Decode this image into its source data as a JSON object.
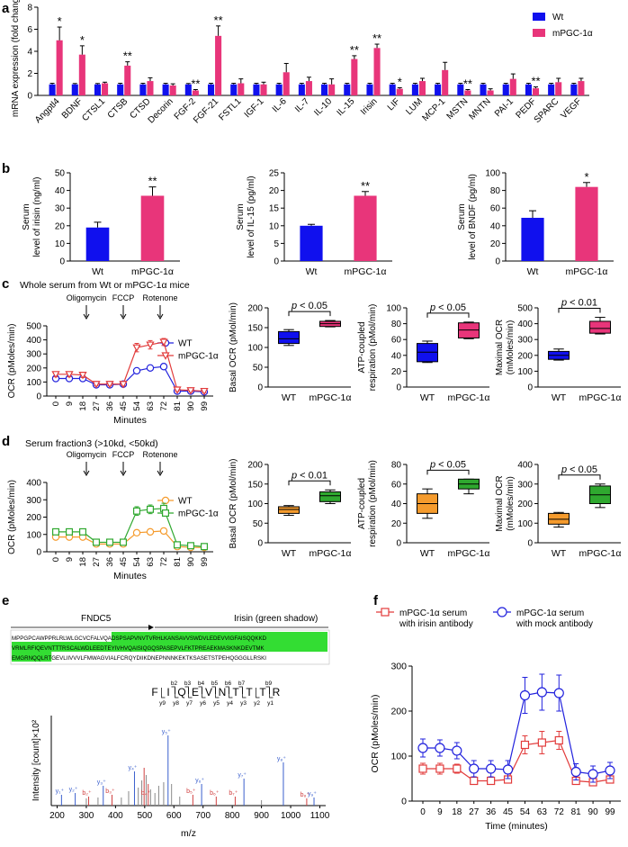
{
  "colors": {
    "wt": "#1010ee",
    "mpgc": "#e8357a",
    "orange": "#f59b2d",
    "green": "#2fa82f",
    "red": "#e23b3b",
    "blue": "#2222dd",
    "highlight": "#33dd33",
    "spec_blue": "#3a5fcd",
    "spec_red": "#d04040",
    "spec_gray": "#888888"
  },
  "panel_labels": {
    "a": "a",
    "b": "b",
    "c": "c",
    "d": "d",
    "e": "e",
    "f": "f"
  },
  "chart_data": [
    {
      "id": "a",
      "type": "bar",
      "ylabel": "mRNA expression (fold changes)",
      "ylim": [
        0,
        8
      ],
      "yticks": [
        0,
        2,
        4,
        6,
        8
      ],
      "legend": [
        "Wt",
        "mPGC-1α"
      ],
      "categories": [
        "Angptl4",
        "BDNF",
        "CTSL1",
        "CTSB",
        "CTSD",
        "Decorin",
        "FGF-2",
        "FGF-21",
        "FSTL1",
        "IGF-1",
        "IL-6",
        "IL-7",
        "IL-10",
        "IL-15",
        "Irisin",
        "LIF",
        "LUM",
        "MCP-1",
        "MSTN",
        "MNTN",
        "PAI-1",
        "PEDF",
        "SPARC",
        "VEGF"
      ],
      "series": [
        {
          "name": "Wt",
          "values": [
            1,
            1,
            1,
            1,
            1,
            1,
            1,
            1,
            1,
            1,
            1,
            1,
            1,
            1,
            1,
            1,
            1,
            1,
            1,
            1,
            1,
            1,
            1,
            1
          ],
          "errors": [
            0.1,
            0.08,
            0.08,
            0.1,
            0.1,
            0.1,
            0.08,
            0.1,
            0.1,
            0.1,
            0.1,
            0.1,
            0.1,
            0.1,
            0.1,
            0.1,
            0.1,
            0.1,
            0.1,
            0.1,
            0.1,
            0.1,
            0.1,
            0.1
          ]
        },
        {
          "name": "mPGC-1α",
          "values": [
            5.0,
            3.7,
            1.1,
            2.7,
            1.3,
            0.9,
            0.45,
            5.4,
            1.1,
            1.0,
            2.1,
            1.3,
            1.0,
            3.3,
            4.3,
            0.6,
            1.3,
            2.3,
            0.45,
            0.45,
            1.5,
            0.65,
            1.2,
            1.3
          ],
          "errors": [
            1.2,
            0.8,
            0.1,
            0.35,
            0.3,
            0.15,
            0.08,
            0.9,
            0.4,
            0.2,
            0.8,
            0.35,
            0.5,
            0.3,
            0.35,
            0.1,
            0.25,
            0.7,
            0.08,
            0.15,
            0.45,
            0.12,
            0.35,
            0.25
          ]
        }
      ],
      "significance": [
        "*",
        "*",
        "",
        "**",
        "",
        "",
        "**",
        "**",
        "",
        "",
        "",
        "",
        "",
        "**",
        "**",
        "*",
        "",
        "",
        "**",
        "",
        "",
        "**",
        "",
        ""
      ]
    },
    {
      "id": "b1",
      "type": "bar",
      "ylabel_lines": [
        "Serum",
        "level of irisin (ng/ml)"
      ],
      "ylim": [
        0,
        50
      ],
      "yticks": [
        0,
        10,
        20,
        30,
        40,
        50
      ],
      "categories": [
        "Wt",
        "mPGC-1α"
      ],
      "values": [
        19,
        37
      ],
      "errors": [
        3,
        5
      ],
      "significance": [
        "",
        "**"
      ]
    },
    {
      "id": "b2",
      "type": "bar",
      "ylabel_lines": [
        "Serum",
        "level of IL-15 (pg/ml)"
      ],
      "ylim": [
        0,
        25
      ],
      "yticks": [
        0,
        5,
        10,
        15,
        20,
        25
      ],
      "categories": [
        "Wt",
        "mPGC-1α"
      ],
      "values": [
        10,
        18.5
      ],
      "errors": [
        0.4,
        1.2
      ],
      "significance": [
        "",
        "**"
      ]
    },
    {
      "id": "b3",
      "type": "bar",
      "ylabel_lines": [
        "Serum",
        "level of BNDF (pg/ml)"
      ],
      "ylim": [
        0,
        100
      ],
      "yticks": [
        0,
        20,
        40,
        60,
        80,
        100
      ],
      "categories": [
        "Wt",
        "mPGC-1α"
      ],
      "values": [
        49,
        84
      ],
      "errors": [
        8,
        5
      ],
      "significance": [
        "",
        "*"
      ]
    },
    {
      "id": "c_line",
      "type": "line",
      "title": "Whole serum from Wt or mPGC-1α mice",
      "xlabel": "Minutes",
      "ylabel": "OCR (pMoles/min)",
      "ylim": [
        0,
        500
      ],
      "yticks": [
        0,
        100,
        200,
        300,
        400,
        500
      ],
      "x": [
        0,
        9,
        18,
        27,
        36,
        45,
        54,
        63,
        72,
        81,
        90,
        99
      ],
      "annotations": [
        {
          "x": 18,
          "text": "Oligomycin"
        },
        {
          "x": 45,
          "text": "FCCP"
        },
        {
          "x": 72,
          "text": "Rotenone"
        }
      ],
      "series": [
        {
          "name": "WT",
          "values": [
            125,
            125,
            125,
            80,
            80,
            85,
            180,
            200,
            210,
            35,
            35,
            30
          ],
          "errors": [
            12,
            12,
            12,
            10,
            10,
            10,
            15,
            15,
            15,
            10,
            10,
            10
          ]
        },
        {
          "name": "mPGC-1α",
          "values": [
            155,
            155,
            150,
            85,
            85,
            85,
            345,
            365,
            385,
            45,
            40,
            35
          ],
          "errors": [
            18,
            18,
            18,
            12,
            12,
            12,
            30,
            30,
            25,
            12,
            12,
            12
          ]
        }
      ]
    },
    {
      "id": "c_box1",
      "type": "box",
      "ylabel": "Basal OCR (pMol/min)",
      "ylim": [
        0,
        200
      ],
      "yticks": [
        0,
        50,
        100,
        150,
        200
      ],
      "categories": [
        "WT",
        "mPGC-1α"
      ],
      "pvalue": "p < 0.05",
      "boxes": [
        {
          "min": 105,
          "q1": 110,
          "med": 122,
          "q3": 140,
          "max": 145
        },
        {
          "min": 152,
          "q1": 153,
          "med": 160,
          "q3": 166,
          "max": 168
        }
      ]
    },
    {
      "id": "c_box2",
      "type": "box",
      "ylabel_lines": [
        "ATP-coupled",
        "respiration (pMol/min)"
      ],
      "ylim": [
        0,
        100
      ],
      "yticks": [
        0,
        20,
        40,
        60,
        80,
        100
      ],
      "categories": [
        "WT",
        "mPGC-1α"
      ],
      "pvalue": "p < 0.05",
      "boxes": [
        {
          "min": 31,
          "q1": 32,
          "med": 44,
          "q3": 55,
          "max": 58
        },
        {
          "min": 61,
          "q1": 62,
          "med": 72,
          "q3": 81,
          "max": 82
        }
      ]
    },
    {
      "id": "c_box3",
      "type": "box",
      "ylabel_lines": [
        "Maximal OCR",
        "(mMoles/min)"
      ],
      "ylim": [
        0,
        500
      ],
      "yticks": [
        0,
        100,
        200,
        300,
        400,
        500
      ],
      "categories": [
        "WT",
        "mPGC-1α"
      ],
      "pvalue": "p < 0.01",
      "boxes": [
        {
          "min": 170,
          "q1": 175,
          "med": 200,
          "q3": 225,
          "max": 240
        },
        {
          "min": 335,
          "q1": 340,
          "med": 370,
          "q3": 415,
          "max": 440
        }
      ]
    },
    {
      "id": "d_line",
      "type": "line",
      "title": "Serum fraction3 (>10kd, <50kd)",
      "xlabel": "Minutes",
      "ylabel": "OCR (pMoles/min)",
      "ylim": [
        0,
        400
      ],
      "yticks": [
        0,
        100,
        200,
        300,
        400
      ],
      "x": [
        0,
        9,
        18,
        27,
        36,
        45,
        54,
        63,
        72,
        81,
        90,
        99
      ],
      "annotations": [
        {
          "x": 18,
          "text": "Oligomycin"
        },
        {
          "x": 45,
          "text": "FCCP"
        },
        {
          "x": 72,
          "text": "Rotenone"
        }
      ],
      "series": [
        {
          "name": "WT",
          "values": [
            85,
            85,
            85,
            45,
            45,
            45,
            110,
            115,
            120,
            30,
            25,
            25
          ],
          "errors": [
            10,
            10,
            10,
            8,
            8,
            8,
            15,
            15,
            15,
            8,
            8,
            8
          ]
        },
        {
          "name": "mPGC-1α",
          "values": [
            115,
            115,
            115,
            55,
            55,
            55,
            235,
            245,
            250,
            40,
            35,
            30
          ],
          "errors": [
            15,
            15,
            15,
            10,
            10,
            10,
            25,
            25,
            30,
            10,
            10,
            10
          ]
        }
      ]
    },
    {
      "id": "d_box1",
      "type": "box",
      "ylabel": "Basal OCR (pMol/min)",
      "ylim": [
        0,
        200
      ],
      "yticks": [
        0,
        50,
        100,
        150,
        200
      ],
      "categories": [
        "WT",
        "mPGC-1α"
      ],
      "pvalue": "p < 0.01",
      "boxes": [
        {
          "min": 70,
          "q1": 75,
          "med": 85,
          "q3": 92,
          "max": 95
        },
        {
          "min": 100,
          "q1": 105,
          "med": 120,
          "q3": 130,
          "max": 135
        }
      ]
    },
    {
      "id": "d_box2",
      "type": "box",
      "ylabel_lines": [
        "ATP-coupled",
        "respiration (pMol/min)"
      ],
      "ylim": [
        0,
        80
      ],
      "yticks": [
        0,
        20,
        40,
        60,
        80
      ],
      "categories": [
        "WT",
        "mPGC-1α"
      ],
      "pvalue": "p < 0.05",
      "boxes": [
        {
          "min": 25,
          "q1": 30,
          "med": 40,
          "q3": 50,
          "max": 55
        },
        {
          "min": 50,
          "q1": 55,
          "med": 60,
          "q3": 65,
          "max": 65
        }
      ]
    },
    {
      "id": "d_box3",
      "type": "box",
      "ylabel_lines": [
        "Maximal OCR",
        "(mMoles/min)"
      ],
      "ylim": [
        0,
        400
      ],
      "yticks": [
        0,
        100,
        200,
        300,
        400
      ],
      "categories": [
        "WT",
        "mPGC-1α"
      ],
      "pvalue": "p < 0.05",
      "boxes": [
        {
          "min": 80,
          "q1": 95,
          "med": 120,
          "q3": 150,
          "max": 155
        },
        {
          "min": 180,
          "q1": 200,
          "med": 245,
          "q3": 290,
          "max": 300
        }
      ]
    },
    {
      "id": "e_spectrum",
      "type": "bar",
      "xlabel": "m/z",
      "ylabel": "Intensity [count]×10²",
      "xlim": [
        180,
        1120
      ],
      "xticks": [
        200,
        300,
        400,
        500,
        600,
        700,
        800,
        900,
        1000,
        1100
      ],
      "ylim": [
        0,
        100
      ],
      "peptide_letters": [
        "F",
        "I",
        "Q",
        "E",
        "V",
        "N",
        "T",
        "T",
        "T",
        "R"
      ],
      "b_labels": [
        "b2",
        "b3",
        "b4",
        "b5",
        "b6",
        "b7",
        "",
        "b9"
      ],
      "y_labels": [
        "y9",
        "y8",
        "y7",
        "y6",
        "y5",
        "y4",
        "y3",
        "y2",
        "y1"
      ],
      "peak_labels": [
        {
          "mz": 215,
          "text": "y₁⁺",
          "kind": "y"
        },
        {
          "mz": 262,
          "text": "y₂⁺",
          "kind": "y"
        },
        {
          "mz": 308,
          "text": "b₂⁺",
          "kind": "b"
        },
        {
          "mz": 358,
          "text": "y₃⁺",
          "kind": "y"
        },
        {
          "mz": 388,
          "text": "b₃⁺",
          "kind": "b"
        },
        {
          "mz": 465,
          "text": "y₄⁺",
          "kind": "y"
        },
        {
          "mz": 510,
          "text": "b₄⁺",
          "kind": "b"
        },
        {
          "mz": 580,
          "text": "y₅⁺",
          "kind": "y"
        },
        {
          "mz": 665,
          "text": "b₅⁺",
          "kind": "b"
        },
        {
          "mz": 695,
          "text": "y₆⁺",
          "kind": "y"
        },
        {
          "mz": 745,
          "text": "b₆⁺",
          "kind": "b"
        },
        {
          "mz": 810,
          "text": "b₇⁺",
          "kind": "b"
        },
        {
          "mz": 840,
          "text": "y₇⁺",
          "kind": "y"
        },
        {
          "mz": 975,
          "text": "y₈⁺",
          "kind": "y"
        },
        {
          "mz": 1055,
          "text": "b₈⁺",
          "kind": "b"
        },
        {
          "mz": 1080,
          "text": "y₉⁺",
          "kind": "y"
        }
      ],
      "peaks": [
        {
          "mz": 215,
          "h": 12,
          "k": "y"
        },
        {
          "mz": 262,
          "h": 14,
          "k": "y"
        },
        {
          "mz": 300,
          "h": 8,
          "k": "g"
        },
        {
          "mz": 308,
          "h": 10,
          "k": "b"
        },
        {
          "mz": 340,
          "h": 9,
          "k": "g"
        },
        {
          "mz": 358,
          "h": 22,
          "k": "y"
        },
        {
          "mz": 388,
          "h": 12,
          "k": "b"
        },
        {
          "mz": 420,
          "h": 9,
          "k": "g"
        },
        {
          "mz": 445,
          "h": 16,
          "k": "g"
        },
        {
          "mz": 465,
          "h": 38,
          "k": "y"
        },
        {
          "mz": 478,
          "h": 20,
          "k": "g"
        },
        {
          "mz": 490,
          "h": 28,
          "k": "g"
        },
        {
          "mz": 498,
          "h": 42,
          "k": "b"
        },
        {
          "mz": 505,
          "h": 34,
          "k": "g"
        },
        {
          "mz": 512,
          "h": 24,
          "k": "b"
        },
        {
          "mz": 520,
          "h": 18,
          "k": "g"
        },
        {
          "mz": 535,
          "h": 14,
          "k": "g"
        },
        {
          "mz": 548,
          "h": 22,
          "k": "g"
        },
        {
          "mz": 565,
          "h": 26,
          "k": "g"
        },
        {
          "mz": 580,
          "h": 78,
          "k": "y"
        },
        {
          "mz": 592,
          "h": 24,
          "k": "g"
        },
        {
          "mz": 620,
          "h": 10,
          "k": "g"
        },
        {
          "mz": 665,
          "h": 12,
          "k": "b"
        },
        {
          "mz": 695,
          "h": 24,
          "k": "y"
        },
        {
          "mz": 745,
          "h": 10,
          "k": "b"
        },
        {
          "mz": 810,
          "h": 10,
          "k": "b"
        },
        {
          "mz": 840,
          "h": 30,
          "k": "y"
        },
        {
          "mz": 900,
          "h": 6,
          "k": "g"
        },
        {
          "mz": 975,
          "h": 48,
          "k": "y"
        },
        {
          "mz": 1055,
          "h": 8,
          "k": "b"
        },
        {
          "mz": 1080,
          "h": 9,
          "k": "y"
        }
      ]
    },
    {
      "id": "f_line",
      "type": "line",
      "xlabel": "Time (minutes)",
      "ylabel": "OCR (pMoles/min)",
      "ylim": [
        0,
        300
      ],
      "yticks": [
        0,
        100,
        200,
        300
      ],
      "x": [
        0,
        9,
        18,
        27,
        36,
        45,
        54,
        63,
        72,
        81,
        90,
        99
      ],
      "series": [
        {
          "name": "mPGC-1α serum with irisin antibody",
          "legend_lines": [
            "mPGC-1α serum",
            "with irisin antibody"
          ],
          "values": [
            72,
            72,
            72,
            45,
            45,
            48,
            125,
            130,
            135,
            45,
            42,
            48
          ],
          "errors": [
            12,
            12,
            10,
            8,
            8,
            8,
            20,
            25,
            20,
            8,
            8,
            8
          ]
        },
        {
          "name": "mPGC-1α serum with mock antibody",
          "legend_lines": [
            "mPGC-1α serum",
            "with mock antibody"
          ],
          "values": [
            118,
            118,
            112,
            72,
            72,
            70,
            235,
            242,
            240,
            65,
            60,
            68
          ],
          "errors": [
            20,
            18,
            18,
            18,
            18,
            20,
            40,
            40,
            40,
            18,
            18,
            18
          ]
        }
      ]
    }
  ],
  "sequence": {
    "title_left": "FNDC5",
    "title_right": "Irisin (green shadow)",
    "lines": [
      {
        "pre": "MPPGPCAWPPRLRLWLGCVCFALVQA",
        "hl": "DSPSAPVNVTVRHLKANSAVVSWDVLEDEVVIGFAISQQKKD"
      },
      {
        "pre": "",
        "hl": "VRMLRFIQEVNTTTRSCALWDLEEDTEYIVHVQAISIQGQSPASEPVLFKTPREAEKMASKNKDEVTMK"
      },
      {
        "pre": "",
        "hl": "EMGRNQQLRT",
        "post": "GEVLIIVVVLFMWAGVIALFCRQYDIIKDNEPNNNKEKTKSASETSTPEHQGGGLLRSKI"
      }
    ]
  }
}
